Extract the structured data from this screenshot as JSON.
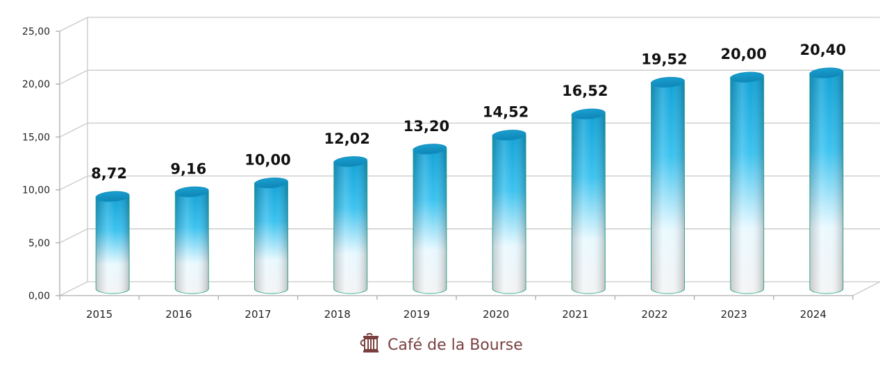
{
  "chart_data": {
    "type": "bar",
    "style": "3d-cylinder",
    "title": "",
    "xlabel": "",
    "ylabel": "",
    "categories": [
      "2015",
      "2016",
      "2017",
      "2018",
      "2019",
      "2020",
      "2021",
      "2022",
      "2023",
      "2024"
    ],
    "values": [
      8.72,
      9.16,
      10.0,
      12.02,
      13.2,
      14.52,
      16.52,
      19.52,
      20.0,
      20.4
    ],
    "data_labels": [
      "8,72",
      "9,16",
      "10,00",
      "12,02",
      "13,20",
      "14,52",
      "16,52",
      "19,52",
      "20,00",
      "20,40"
    ],
    "ylim": [
      0,
      25
    ],
    "yticks": [
      0,
      5,
      10,
      15,
      20,
      25
    ],
    "ytick_labels": [
      "0,00",
      "5,00",
      "10,00",
      "15,00",
      "20,00",
      "25,00"
    ],
    "grid": true,
    "legend": null,
    "colors": {
      "bar_top": "#1aa7d8",
      "bar_bottom": "#ffffff",
      "bar_edge": "#3bb89a",
      "grid": "#c8c8c8"
    }
  },
  "brand": {
    "name": "Café de la Bourse",
    "icon": "coffee-cup-icon",
    "color": "#7a3f3f"
  }
}
